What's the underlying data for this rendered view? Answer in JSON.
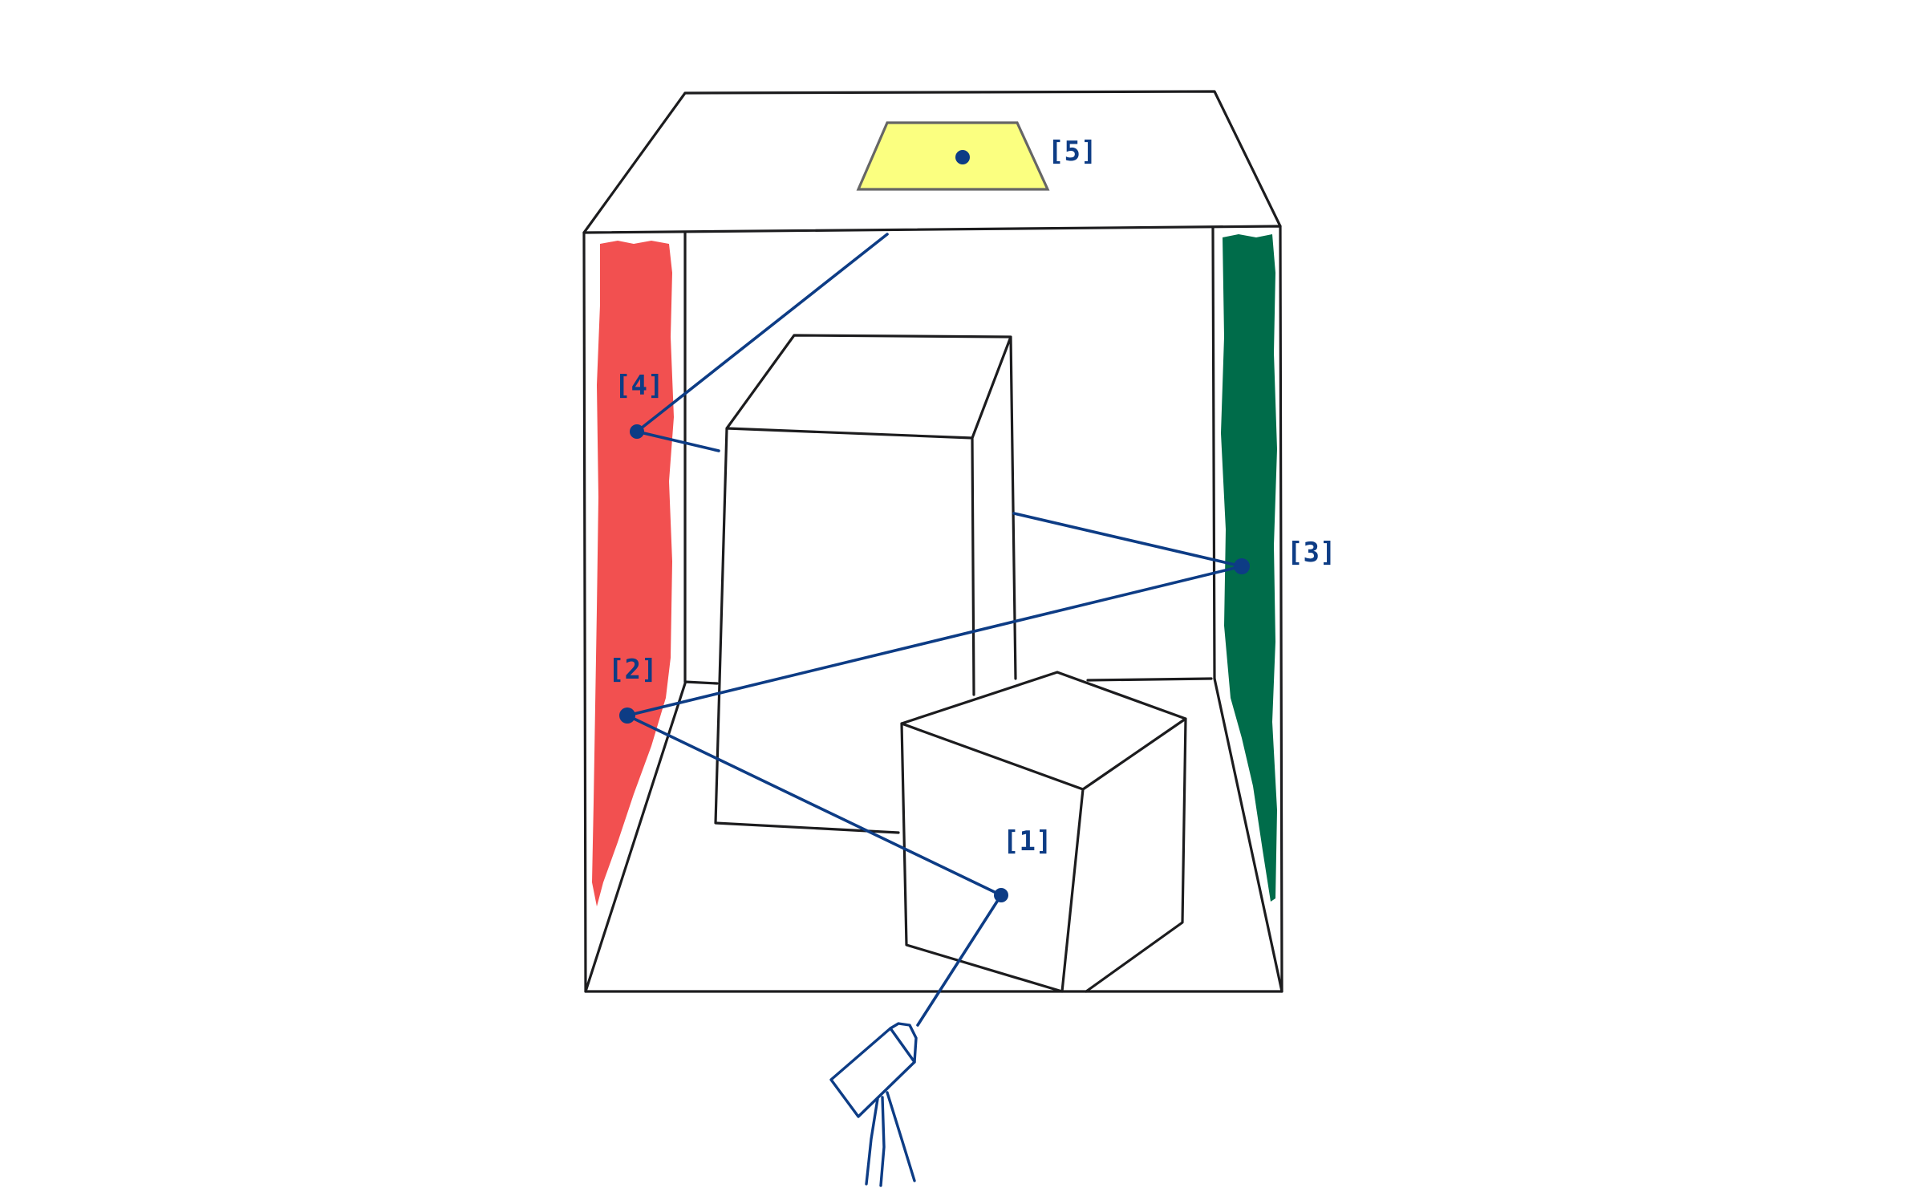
{
  "colors": {
    "ink": "#1c1c1e",
    "ray": "#0d3c85",
    "left_wall": "#f25050",
    "right_wall": "#006c4a",
    "ceiling_light": "#fbff80",
    "light_border": "#666666",
    "background": "#ffffff"
  },
  "elements": {
    "room": "box-room",
    "tall_box": "tall-box",
    "short_box": "short-cube",
    "light": "area-light",
    "camera": "camera-icon"
  },
  "labels": [
    {
      "id": "1",
      "text": "[1]"
    },
    {
      "id": "2",
      "text": "[2]"
    },
    {
      "id": "3",
      "text": "[3]"
    },
    {
      "id": "4",
      "text": "[4]"
    },
    {
      "id": "5",
      "text": "[5]"
    }
  ]
}
